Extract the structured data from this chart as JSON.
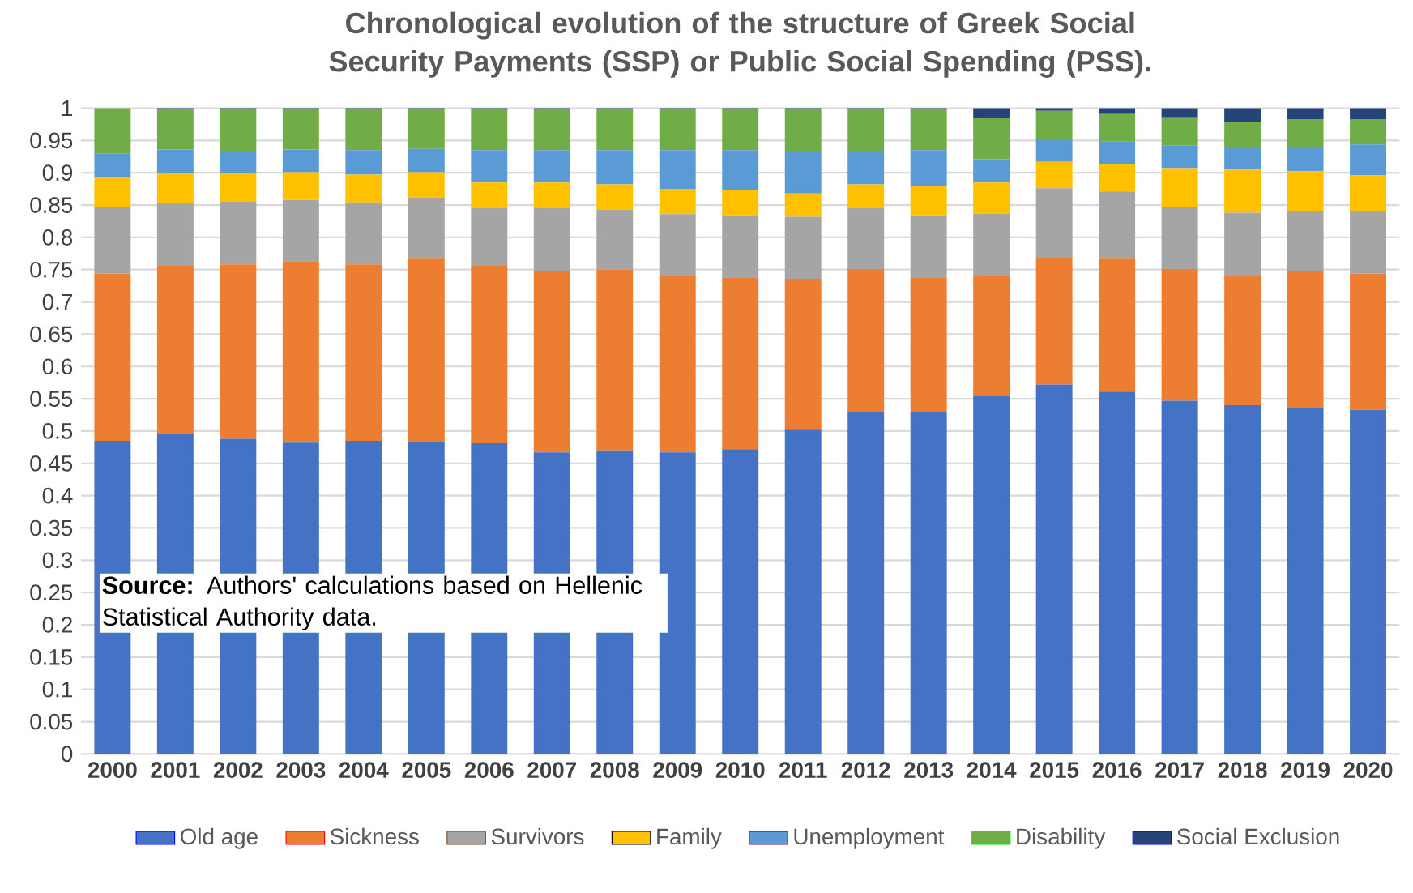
{
  "chart_data": {
    "type": "bar",
    "stacked": true,
    "title": "Chronological  evolution of the structure of Greek Social Security Payments (SSP) or Public Social Spending (PSS).",
    "categories": [
      "2000",
      "2001",
      "2002",
      "2003",
      "2004",
      "2005",
      "2006",
      "2007",
      "2008",
      "2009",
      "2010",
      "2011",
      "2012",
      "2013",
      "2014",
      "2015",
      "2016",
      "2017",
      "2018",
      "2019",
      "2020"
    ],
    "series": [
      {
        "name": "Old age",
        "color": "#4472c4",
        "values": [
          0.485,
          0.495,
          0.488,
          0.482,
          0.485,
          0.483,
          0.481,
          0.467,
          0.47,
          0.467,
          0.472,
          0.502,
          0.53,
          0.529,
          0.554,
          0.572,
          0.561,
          0.547,
          0.54,
          0.535,
          0.533
        ]
      },
      {
        "name": "Sickness",
        "color": "#ed7d31",
        "values": [
          0.259,
          0.261,
          0.27,
          0.281,
          0.273,
          0.284,
          0.275,
          0.28,
          0.28,
          0.273,
          0.266,
          0.234,
          0.221,
          0.209,
          0.186,
          0.196,
          0.206,
          0.204,
          0.201,
          0.212,
          0.211
        ]
      },
      {
        "name": "Survivors",
        "color": "#a5a5a5",
        "values": [
          0.103,
          0.097,
          0.097,
          0.095,
          0.096,
          0.095,
          0.089,
          0.098,
          0.093,
          0.096,
          0.096,
          0.096,
          0.094,
          0.096,
          0.097,
          0.108,
          0.104,
          0.096,
          0.097,
          0.094,
          0.097
        ]
      },
      {
        "name": "Family",
        "color": "#ffc000",
        "values": [
          0.046,
          0.046,
          0.044,
          0.043,
          0.043,
          0.039,
          0.04,
          0.04,
          0.039,
          0.039,
          0.039,
          0.036,
          0.037,
          0.046,
          0.048,
          0.041,
          0.042,
          0.06,
          0.067,
          0.061,
          0.055
        ]
      },
      {
        "name": "Unemployment",
        "color": "#5b9bd5",
        "values": [
          0.037,
          0.037,
          0.034,
          0.035,
          0.038,
          0.036,
          0.05,
          0.05,
          0.053,
          0.06,
          0.062,
          0.065,
          0.051,
          0.055,
          0.036,
          0.035,
          0.036,
          0.035,
          0.035,
          0.037,
          0.048
        ]
      },
      {
        "name": "Disability",
        "color": "#70ad47",
        "values": [
          0.07,
          0.062,
          0.065,
          0.062,
          0.063,
          0.061,
          0.063,
          0.063,
          0.063,
          0.063,
          0.063,
          0.065,
          0.065,
          0.063,
          0.064,
          0.044,
          0.042,
          0.044,
          0.039,
          0.044,
          0.039
        ]
      },
      {
        "name": "Social Exclusion",
        "color": "#264478",
        "values": [
          0,
          0.002,
          0.002,
          0.002,
          0.002,
          0.002,
          0.002,
          0.002,
          0.002,
          0.002,
          0.002,
          0.002,
          0.002,
          0.002,
          0.015,
          0.004,
          0.009,
          0.014,
          0.021,
          0.017,
          0.017
        ]
      }
    ],
    "ylim": [
      0,
      1
    ],
    "yticks": [
      0,
      0.05,
      0.1,
      0.15,
      0.2,
      0.25,
      0.3,
      0.35,
      0.4,
      0.45,
      0.5,
      0.55,
      0.6,
      0.65,
      0.7,
      0.75,
      0.8,
      0.85,
      0.9,
      0.95,
      1
    ],
    "grid": "y",
    "legend": "bottom",
    "annotations": [
      "**Source:** Authors' calculations based on Hellenic Statistical Authority data."
    ]
  }
}
